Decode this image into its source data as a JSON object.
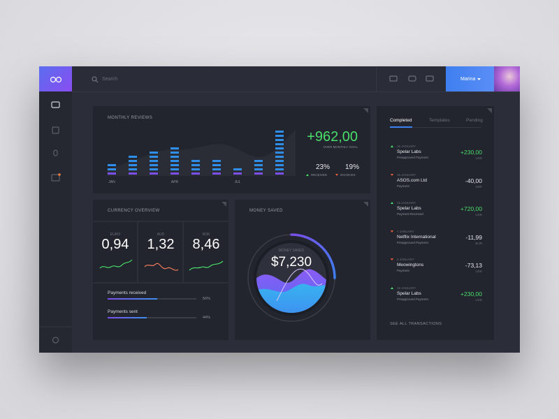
{
  "header": {
    "search_placeholder": "Search",
    "user": "Marina"
  },
  "monthly_reviews": {
    "title": "MONTHLY REVIEWS",
    "amount": "+962,00",
    "amount_caption": "OVER MONTHLY GOAL",
    "stats": [
      {
        "value": "23%",
        "label": "RECEIVED"
      },
      {
        "value": "19%",
        "label": "INVOICES"
      }
    ],
    "categories": [
      "JAN",
      null,
      null,
      "APR",
      null,
      null,
      "JUL",
      null,
      null
    ],
    "values": [
      3,
      5,
      6,
      7,
      4,
      4,
      2,
      4,
      11
    ]
  },
  "currency_overview": {
    "title": "CURRENCY OVERVIEW",
    "currencies": [
      {
        "code": "EURO",
        "rate": "0,94"
      },
      {
        "code": "AUD",
        "rate": "1,32"
      },
      {
        "code": "NOK",
        "rate": "8,46"
      }
    ],
    "payments": [
      {
        "label": "Payments received",
        "value": 56,
        "value_label": "56%"
      },
      {
        "label": "Payments sent",
        "value": 44,
        "value_label": "44%"
      }
    ]
  },
  "money_saved": {
    "title": "MONEY SAVED",
    "caption": "MONEY SAVED",
    "amount": "$7,230"
  },
  "transactions": {
    "tabs": [
      "Completed",
      "Templates",
      "Pending"
    ],
    "items": [
      {
        "date": "15 JANUARY",
        "name": "Spelar Labs",
        "description": "Preapproved Payment",
        "amount": "+230,00",
        "currency": "USD",
        "direction": "in"
      },
      {
        "date": "15 JANUARY",
        "name": "ASOS.com Ltd",
        "description": "Payment",
        "amount": "-40,00",
        "currency": "GBP",
        "direction": "out"
      },
      {
        "date": "15 JANUARY",
        "name": "Spelar Labs",
        "description": "Payment Received",
        "amount": "+720,00",
        "currency": "USD",
        "direction": "in"
      },
      {
        "date": "7 JANUARY",
        "name": "Netflix International",
        "description": "Preapproved Payment",
        "amount": "-11,99",
        "currency": "EUR",
        "direction": "out"
      },
      {
        "date": "4 JANUARY",
        "name": "Meowingtons",
        "description": "Payment",
        "amount": "-73,13",
        "currency": "USD",
        "direction": "out"
      },
      {
        "date": "15 JANUARY",
        "name": "Spelar Labs",
        "description": "Preapproved Payment",
        "amount": "+230,00",
        "currency": "USD",
        "direction": "in"
      }
    ],
    "footer": "SEE ALL TRANSACTIONS"
  }
}
